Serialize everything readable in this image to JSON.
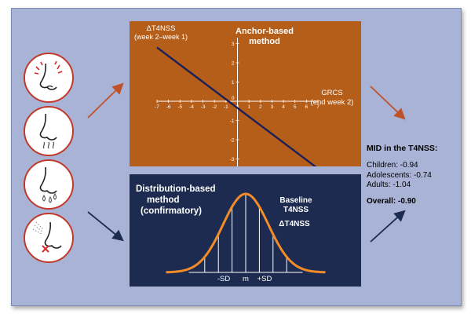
{
  "anchor": {
    "title_line1": "Anchor-based",
    "title_line2": "method",
    "ylabel_line1": "ΔT4NSS",
    "ylabel_line2": "(week 2–week 1)",
    "xlabel_line1": "GRCS",
    "xlabel_line2": "(end week 2)"
  },
  "distribution": {
    "title_line1": "Distribution-based",
    "title_line2": "method",
    "title_line3": "(confirmatory)",
    "baseline_line1": "Baseline",
    "baseline_line2": "T4NSS",
    "delta": "ΔT4NSS",
    "minus_sd": "-SD",
    "mean": "m",
    "plus_sd": "+SD"
  },
  "mid": {
    "heading": "MID in the T4NSS:",
    "children": "Children: -0.94",
    "adolescents": "Adolescents: -0.74",
    "adults": "Adults: -1.04",
    "overall": "Overall: -0.90"
  },
  "chart_data": {
    "type": "line",
    "title": "Anchor-based method",
    "xlabel": "GRCS (end week 2)",
    "ylabel": "ΔT4NSS (week 2–week 1)",
    "xlim": [
      -7,
      7
    ],
    "ylim": [
      -4,
      4
    ],
    "x_ticks": [
      -7,
      -6,
      -5,
      -4,
      -3,
      -2,
      -1,
      0,
      1,
      2,
      3,
      4,
      5,
      6,
      7
    ],
    "y_ticks": [
      -3,
      -2,
      -1,
      0,
      1,
      2,
      3
    ],
    "series": [
      {
        "x": [
          -7,
          7
        ],
        "y": [
          2.8,
          -3.5
        ]
      }
    ]
  },
  "colors": {
    "anchor_panel": "#b45e1a",
    "dist_panel": "#1c2b4f",
    "background": "#a9b3d6",
    "line": "#1c1f5a",
    "curve": "#f28c28",
    "arrow_orange": "#c0522a",
    "arrow_navy": "#1c2b4f",
    "icon_border": "#c0392b"
  },
  "icons": [
    "nose-irritation-icon",
    "nose-congestion-icon",
    "nose-runny-icon",
    "nasal-spray-icon"
  ]
}
